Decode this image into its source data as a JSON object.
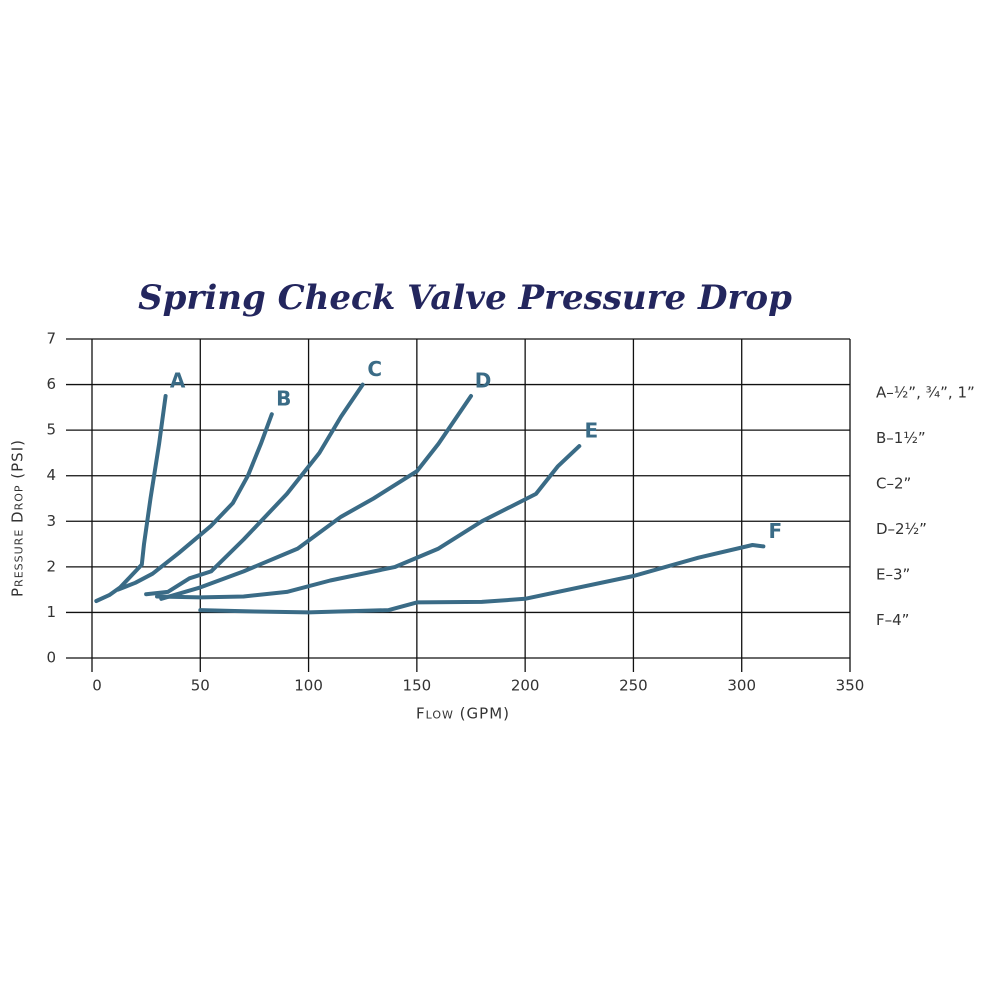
{
  "chart_data": {
    "type": "line",
    "title": "Spring Check Valve Pressure Drop",
    "x_label": "Flow (GPM)",
    "y_label": "Pressure Drop (PSI)",
    "xlim": [
      0,
      350
    ],
    "xticks": [
      0,
      50,
      100,
      150,
      200,
      250,
      300,
      350
    ],
    "ylim": [
      0,
      7
    ],
    "yticks": [
      0,
      1,
      2,
      3,
      4,
      5,
      6,
      7
    ],
    "grid": true,
    "series": [
      {
        "name": "A",
        "legend": "A–½”, ¾”, 1”",
        "color": "#3a6b86",
        "x": [
          2,
          8,
          13,
          18,
          23,
          24,
          27,
          31,
          34
        ],
        "values": [
          1.25,
          1.38,
          1.55,
          1.8,
          2.05,
          2.5,
          3.5,
          4.7,
          5.75
        ]
      },
      {
        "name": "B",
        "legend": "B–1½”",
        "color": "#3a6b86",
        "x": [
          12,
          20,
          28,
          40,
          55,
          65,
          72,
          78,
          83
        ],
        "values": [
          1.5,
          1.65,
          1.85,
          2.3,
          2.9,
          3.4,
          4.0,
          4.7,
          5.35
        ]
      },
      {
        "name": "C",
        "legend": "C–2”",
        "color": "#3a6b86",
        "x": [
          25,
          35,
          45,
          55,
          70,
          90,
          105,
          115,
          125
        ],
        "values": [
          1.4,
          1.45,
          1.75,
          1.9,
          2.6,
          3.6,
          4.5,
          5.3,
          6.0
        ]
      },
      {
        "name": "D",
        "legend": "D–2½”",
        "color": "#3a6b86",
        "x": [
          32,
          50,
          70,
          95,
          115,
          130,
          150,
          160,
          175
        ],
        "values": [
          1.3,
          1.55,
          1.9,
          2.4,
          3.1,
          3.5,
          4.1,
          4.7,
          5.75
        ]
      },
      {
        "name": "E",
        "legend": "E–3”",
        "color": "#3a6b86",
        "x": [
          30,
          50,
          70,
          90,
          110,
          140,
          160,
          180,
          205,
          215,
          225
        ],
        "values": [
          1.35,
          1.33,
          1.35,
          1.45,
          1.7,
          2.0,
          2.4,
          3.0,
          3.6,
          4.2,
          4.65
        ]
      },
      {
        "name": "F",
        "legend": "F–4”",
        "color": "#3a6b86",
        "x": [
          50,
          75,
          100,
          137,
          150,
          180,
          200,
          250,
          280,
          305,
          310
        ],
        "values": [
          1.05,
          1.02,
          1.0,
          1.05,
          1.22,
          1.23,
          1.3,
          1.8,
          2.2,
          2.48,
          2.45
        ]
      }
    ]
  }
}
